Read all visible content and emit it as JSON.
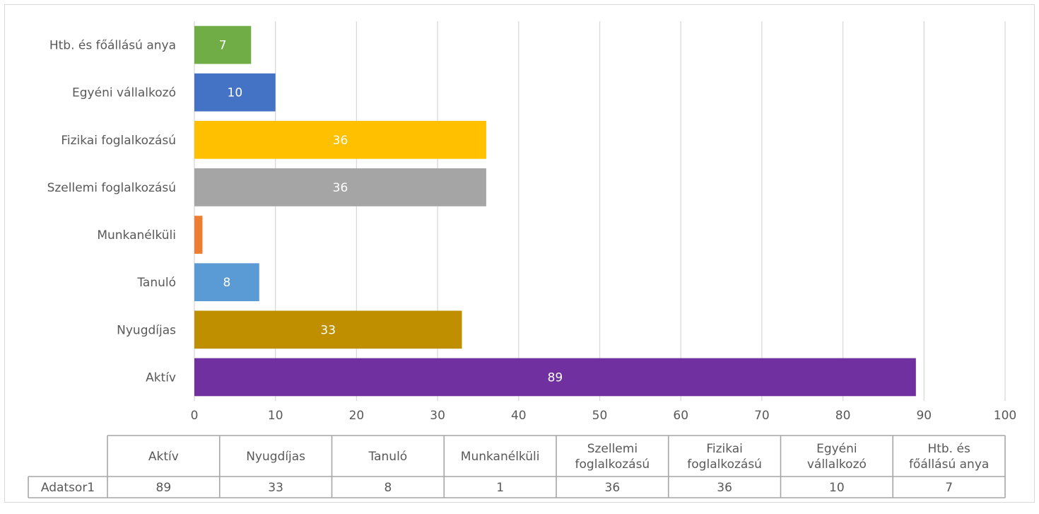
{
  "chart_data": {
    "type": "bar",
    "orientation": "horizontal",
    "title": "",
    "xlabel": "",
    "ylabel": "",
    "xlim": [
      0,
      100
    ],
    "x_ticks": [
      0,
      10,
      20,
      30,
      40,
      50,
      60,
      70,
      80,
      90,
      100
    ],
    "grid": true,
    "legend": "none",
    "categories": [
      "Aktív",
      "Nyugdíjas",
      "Tanuló",
      "Munkanélküli",
      "Szellemi foglalkozású",
      "Fizikai foglalkozású",
      "Egyéni vállalkozó",
      "Htb. és főállású anya"
    ],
    "series": [
      {
        "name": "Adatsor1",
        "values": [
          89,
          33,
          8,
          1,
          36,
          36,
          10,
          7
        ],
        "colors": [
          "#7030a0",
          "#bf8f00",
          "#5b9bd5",
          "#ed7d31",
          "#a5a5a5",
          "#ffc000",
          "#4472c4",
          "#70ad47"
        ],
        "data_labels": [
          "89",
          "33",
          "8",
          "",
          "36",
          "36",
          "10",
          "7"
        ]
      }
    ],
    "data_table": {
      "headers": [
        "Aktív",
        "Nyugdíjas",
        "Tanuló",
        "Munkanélküli",
        "Szellemi foglalkozású",
        "Fizikai foglalkozású",
        "Egyéni vállalkozó",
        "Htb. és főállású anya"
      ],
      "row_label": "Adatsor1",
      "values": [
        "89",
        "33",
        "8",
        "1",
        "36",
        "36",
        "10",
        "7"
      ]
    }
  }
}
